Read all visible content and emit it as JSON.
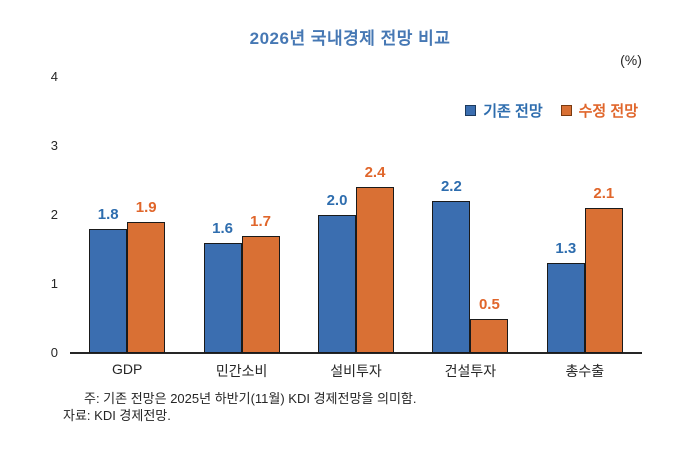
{
  "title": "2026년 국내경제 전망 비교",
  "unit_label": "(%)",
  "colors": {
    "title": "#4678b4",
    "axis": "#262626",
    "bar_border": "#1a1a1a",
    "series_blue": "#3b6eb0",
    "series_orange": "#d97034",
    "label_blue": "#2e6dae",
    "label_orange": "#e0662b",
    "legend_marker_border_blue": "#1c3a5e",
    "legend_marker_border_orange": "#7a3a10"
  },
  "legend": {
    "items": [
      {
        "label": "기존 전망"
      },
      {
        "label": "수정 전망"
      }
    ]
  },
  "chart_data": {
    "type": "bar",
    "title": "2026년 국내경제 전망 비교",
    "unit": "(%)",
    "categories": [
      "GDP",
      "민간소비",
      "설비투자",
      "건설투자",
      "총수출"
    ],
    "series": [
      {
        "name": "기존 전망",
        "color": "#3b6eb0",
        "label_color": "#2e6dae",
        "values": [
          1.8,
          1.6,
          2.0,
          2.2,
          1.3
        ]
      },
      {
        "name": "수정 전망",
        "color": "#d97034",
        "label_color": "#e0662b",
        "values": [
          1.9,
          1.7,
          2.4,
          0.5,
          2.1
        ]
      }
    ],
    "ylim": [
      0,
      4
    ],
    "yticks": [
      0,
      1,
      2,
      3,
      4
    ],
    "grid": false,
    "legend_position": "top-right",
    "value_labels": true
  },
  "footnotes": {
    "note": "주: 기존 전망은 2025년 하반기(11월) KDI 경제전망을 의미함.",
    "source": "자료: KDI 경제전망."
  }
}
